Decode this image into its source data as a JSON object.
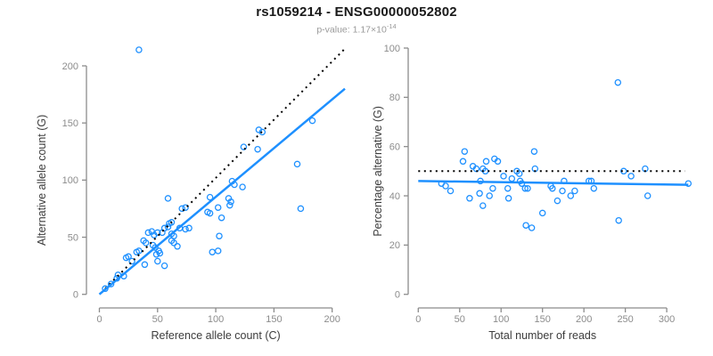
{
  "title": "rs1059214 - ENSG00000052802",
  "subtitle": {
    "prefix": "p-value: 1.17×10",
    "exponent": "-14"
  },
  "colors": {
    "points": "#1e90ff",
    "regression_line": "#1e90ff",
    "reference_line": "#000000",
    "axis": "#8c8c8c",
    "tick_labels": "#8c8c8c",
    "axis_titles": "#3c3c3c",
    "title": "#1a1a1a",
    "subtitle": "#9a9a9a"
  },
  "chart_data": [
    {
      "type": "scatter",
      "name": "allele-counts-scatter",
      "xlabel": "Reference allele count (C)",
      "ylabel": "Alternative allele count (G)",
      "xlim": [
        0,
        200
      ],
      "ylim": [
        0,
        200
      ],
      "xticks": [
        0,
        50,
        100,
        150,
        200
      ],
      "yticks": [
        0,
        50,
        100,
        150,
        200
      ],
      "grid": false,
      "points": [
        [
          5,
          5
        ],
        [
          10,
          9
        ],
        [
          15,
          14
        ],
        [
          16,
          17
        ],
        [
          21,
          16
        ],
        [
          23,
          32
        ],
        [
          25,
          33
        ],
        [
          28,
          29
        ],
        [
          32,
          37
        ],
        [
          34,
          38
        ],
        [
          38,
          47
        ],
        [
          39,
          26
        ],
        [
          40,
          45
        ],
        [
          42,
          54
        ],
        [
          45,
          55
        ],
        [
          46,
          43
        ],
        [
          47,
          52
        ],
        [
          48,
          41
        ],
        [
          49,
          35
        ],
        [
          50,
          29
        ],
        [
          50,
          54
        ],
        [
          51,
          38
        ],
        [
          52,
          36
        ],
        [
          54,
          54
        ],
        [
          56,
          25
        ],
        [
          56,
          58
        ],
        [
          59,
          59
        ],
        [
          59,
          84
        ],
        [
          60,
          62
        ],
        [
          62,
          63
        ],
        [
          62,
          53
        ],
        [
          62,
          47
        ],
        [
          64,
          51
        ],
        [
          64,
          45
        ],
        [
          67,
          42
        ],
        [
          69,
          58
        ],
        [
          71,
          75
        ],
        [
          74,
          57
        ],
        [
          74,
          76
        ],
        [
          77,
          58
        ],
        [
          93,
          72
        ],
        [
          95,
          71
        ],
        [
          95,
          85
        ],
        [
          97,
          37
        ],
        [
          102,
          38
        ],
        [
          102,
          76
        ],
        [
          103,
          51
        ],
        [
          105,
          67
        ],
        [
          111,
          84
        ],
        [
          112,
          78
        ],
        [
          113,
          81
        ],
        [
          114,
          99
        ],
        [
          116,
          96
        ],
        [
          123,
          94
        ],
        [
          124,
          129
        ],
        [
          136,
          127
        ],
        [
          137,
          144
        ],
        [
          140,
          142
        ],
        [
          170,
          114
        ],
        [
          173,
          75
        ],
        [
          183,
          152
        ],
        [
          34,
          214
        ]
      ],
      "lines": [
        {
          "name": "identity-line",
          "style": "dotted",
          "color_key": "reference_line",
          "from": [
            5,
            5
          ],
          "to": [
            210,
            214
          ]
        },
        {
          "name": "regression-line",
          "style": "solid",
          "color_key": "regression_line",
          "from": [
            0,
            0
          ],
          "to": [
            211,
            180
          ]
        }
      ]
    },
    {
      "type": "scatter",
      "name": "percentage-vs-coverage-scatter",
      "xlabel": "Total number of reads",
      "ylabel": "Percentage alternative (G)",
      "xlim": [
        0,
        300
      ],
      "ylim": [
        0,
        100
      ],
      "xticks": [
        0,
        50,
        100,
        150,
        200,
        250,
        300
      ],
      "yticks": [
        0,
        20,
        40,
        60,
        80,
        100
      ],
      "grid": false,
      "points": [
        [
          28,
          45
        ],
        [
          33,
          44
        ],
        [
          39,
          42
        ],
        [
          54,
          54
        ],
        [
          56,
          58
        ],
        [
          62,
          39
        ],
        [
          66,
          52
        ],
        [
          70,
          51
        ],
        [
          74,
          41
        ],
        [
          75,
          46
        ],
        [
          78,
          51
        ],
        [
          78,
          36
        ],
        [
          81,
          50
        ],
        [
          82,
          54
        ],
        [
          86,
          40
        ],
        [
          90,
          43
        ],
        [
          92,
          55
        ],
        [
          96,
          54
        ],
        [
          103,
          48
        ],
        [
          108,
          43
        ],
        [
          109,
          39
        ],
        [
          113,
          47
        ],
        [
          119,
          50
        ],
        [
          122,
          49
        ],
        [
          123,
          46
        ],
        [
          125,
          45
        ],
        [
          129,
          43
        ],
        [
          130,
          28
        ],
        [
          132,
          43
        ],
        [
          137,
          27
        ],
        [
          140,
          58
        ],
        [
          141,
          51
        ],
        [
          150,
          33
        ],
        [
          160,
          44
        ],
        [
          162,
          43
        ],
        [
          168,
          38
        ],
        [
          174,
          42
        ],
        [
          176,
          46
        ],
        [
          184,
          40
        ],
        [
          189,
          42
        ],
        [
          206,
          46
        ],
        [
          209,
          46
        ],
        [
          212,
          43
        ],
        [
          241,
          86
        ],
        [
          242,
          30
        ],
        [
          248,
          50
        ],
        [
          257,
          48
        ],
        [
          274,
          51
        ],
        [
          277,
          40
        ],
        [
          326,
          45
        ]
      ],
      "lines": [
        {
          "name": "fifty-percent-line",
          "style": "dotted",
          "color_key": "reference_line",
          "from": [
            0,
            50
          ],
          "to": [
            322,
            50
          ]
        },
        {
          "name": "mean-percentage-line",
          "style": "solid",
          "color_key": "regression_line",
          "from": [
            0,
            46
          ],
          "to": [
            326,
            44.5
          ]
        }
      ]
    }
  ]
}
